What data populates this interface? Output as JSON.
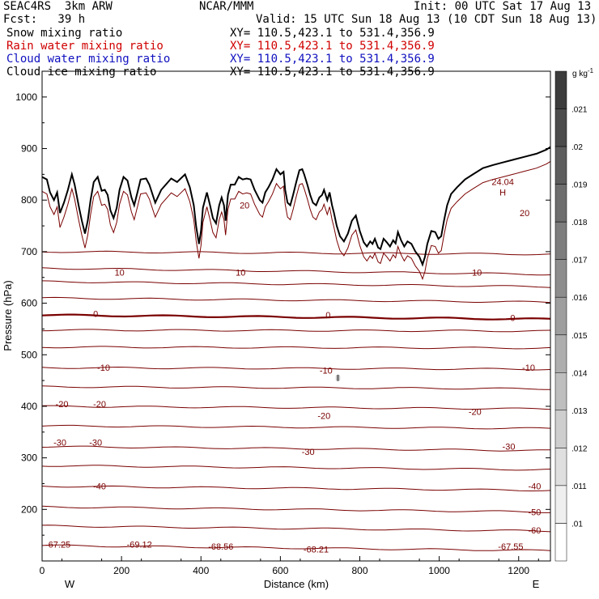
{
  "header": {
    "left1": "SEAC4RS  3km ARW",
    "left2": "Fcst:   39 h",
    "center1": "NCAR/MMM",
    "valid": "Valid: 15 UTC Sun 18 Aug 13 (10 CDT Sun 18 Aug 13)",
    "init": "Init: 00 UTC Sat 17 Aug 13"
  },
  "fields": [
    {
      "name": "Snow mixing ratio",
      "xy": "XY= 110.5,423.1 to 531.4,356.9",
      "color": "#000000"
    },
    {
      "name": "Rain water mixing ratio",
      "xy": "XY= 110.5,423.1 to 531.4,356.9",
      "color": "#d00000"
    },
    {
      "name": "Cloud water mixing ratio",
      "xy": "XY= 110.5,423.1 to 531.4,356.9",
      "color": "#1010c0"
    },
    {
      "name": "Cloud ice mixing ratio",
      "xy": "XY= 110.5,423.1 to 531.4,356.9",
      "color": "#000000"
    }
  ],
  "chart_data": {
    "type": "cross-section",
    "xlabel": "Distance (km)",
    "ylabel": "Pressure (hPa)",
    "xlim": [
      0,
      1280
    ],
    "ylim": [
      1050,
      100
    ],
    "xticks": [
      0,
      200,
      400,
      600,
      800,
      1000,
      1200
    ],
    "yticks": [
      200,
      300,
      400,
      500,
      600,
      700,
      800,
      900,
      1000
    ],
    "end_labels": {
      "left": "W",
      "right": "E"
    },
    "colorbar": {
      "units": "g kg",
      "unit_sup": "-1",
      "ticks": [
        ".021",
        ".02",
        ".019",
        ".018",
        ".017",
        ".016",
        ".015",
        ".014",
        ".013",
        ".012",
        ".011",
        ".01"
      ]
    },
    "contour_labels": [
      {
        "x": 40,
        "p": 132,
        "text": "-67.25"
      },
      {
        "x": 245,
        "p": 132,
        "text": "-69.12"
      },
      {
        "x": 450,
        "p": 128,
        "text": "-68.56"
      },
      {
        "x": 690,
        "p": 123,
        "text": "-68.21"
      },
      {
        "x": 1180,
        "p": 128,
        "text": "-67.55"
      },
      {
        "x": 1240,
        "p": 160,
        "text": "-60"
      },
      {
        "x": 1240,
        "p": 195,
        "text": "-50"
      },
      {
        "x": 1240,
        "p": 245,
        "text": "-40"
      },
      {
        "x": 145,
        "p": 245,
        "text": "-40"
      },
      {
        "x": 45,
        "p": 330,
        "text": "-30"
      },
      {
        "x": 135,
        "p": 330,
        "text": "-30"
      },
      {
        "x": 670,
        "p": 312,
        "text": "-30"
      },
      {
        "x": 1175,
        "p": 322,
        "text": "-30"
      },
      {
        "x": 50,
        "p": 405,
        "text": "-20"
      },
      {
        "x": 145,
        "p": 405,
        "text": "-20"
      },
      {
        "x": 710,
        "p": 382,
        "text": "-20"
      },
      {
        "x": 1090,
        "p": 390,
        "text": "-20"
      },
      {
        "x": 155,
        "p": 475,
        "text": "-10"
      },
      {
        "x": 715,
        "p": 470,
        "text": "-10"
      },
      {
        "x": 1225,
        "p": 475,
        "text": "-10"
      },
      {
        "x": 135,
        "p": 580,
        "text": "0"
      },
      {
        "x": 720,
        "p": 577,
        "text": "0"
      },
      {
        "x": 1185,
        "p": 572,
        "text": "0"
      },
      {
        "x": 195,
        "p": 660,
        "text": "10"
      },
      {
        "x": 500,
        "p": 660,
        "text": "10"
      },
      {
        "x": 1095,
        "p": 660,
        "text": "10"
      },
      {
        "x": 510,
        "p": 790,
        "text": "20"
      },
      {
        "x": 1215,
        "p": 775,
        "text": "20"
      },
      {
        "x": 1160,
        "p": 815,
        "text": "H"
      },
      {
        "x": 1160,
        "p": 836,
        "text": "24.04"
      }
    ],
    "isotherms": [
      {
        "base": 130,
        "slope": -10,
        "label": ""
      },
      {
        "base": 168,
        "slope": -10,
        "label": ""
      },
      {
        "base": 205,
        "slope": -10,
        "label": ""
      },
      {
        "base": 245,
        "slope": -8,
        "label": ""
      },
      {
        "base": 285,
        "slope": -8,
        "label": ""
      },
      {
        "base": 322,
        "slope": -8,
        "label": ""
      },
      {
        "base": 362,
        "slope": -5,
        "label": ""
      },
      {
        "base": 400,
        "slope": -5,
        "label": ""
      },
      {
        "base": 438,
        "slope": -4,
        "label": ""
      },
      {
        "base": 475,
        "slope": -3,
        "label": ""
      },
      {
        "base": 515,
        "slope": -2,
        "label": ""
      },
      {
        "base": 548,
        "slope": -2,
        "label": ""
      },
      {
        "base": 577,
        "slope": -8,
        "label": "",
        "bold": true
      },
      {
        "base": 610,
        "slope": -8,
        "label": ""
      },
      {
        "base": 642,
        "slope": -10,
        "label": ""
      },
      {
        "base": 668,
        "slope": -12,
        "label": ""
      },
      {
        "base": 700,
        "slope": -5,
        "label": ""
      }
    ],
    "terrain": [
      [
        0,
        845
      ],
      [
        12,
        840
      ],
      [
        20,
        815
      ],
      [
        30,
        800
      ],
      [
        38,
        815
      ],
      [
        45,
        775
      ],
      [
        55,
        795
      ],
      [
        65,
        820
      ],
      [
        75,
        850
      ],
      [
        82,
        830
      ],
      [
        92,
        790
      ],
      [
        100,
        760
      ],
      [
        108,
        735
      ],
      [
        115,
        760
      ],
      [
        122,
        800
      ],
      [
        130,
        835
      ],
      [
        140,
        845
      ],
      [
        150,
        818
      ],
      [
        158,
        820
      ],
      [
        165,
        810
      ],
      [
        172,
        780
      ],
      [
        180,
        765
      ],
      [
        188,
        785
      ],
      [
        195,
        820
      ],
      [
        205,
        845
      ],
      [
        215,
        838
      ],
      [
        225,
        805
      ],
      [
        232,
        790
      ],
      [
        240,
        815
      ],
      [
        248,
        840
      ],
      [
        262,
        842
      ],
      [
        270,
        830
      ],
      [
        285,
        795
      ],
      [
        300,
        820
      ],
      [
        325,
        842
      ],
      [
        340,
        835
      ],
      [
        360,
        850
      ],
      [
        372,
        825
      ],
      [
        382,
        790
      ],
      [
        388,
        748
      ],
      [
        395,
        715
      ],
      [
        400,
        740
      ],
      [
        405,
        785
      ],
      [
        415,
        815
      ],
      [
        423,
        790
      ],
      [
        430,
        765
      ],
      [
        438,
        755
      ],
      [
        446,
        790
      ],
      [
        452,
        805
      ],
      [
        458,
        790
      ],
      [
        462,
        760
      ],
      [
        468,
        810
      ],
      [
        475,
        830
      ],
      [
        485,
        830
      ],
      [
        495,
        845
      ],
      [
        505,
        840
      ],
      [
        515,
        842
      ],
      [
        525,
        840
      ],
      [
        535,
        820
      ],
      [
        548,
        800
      ],
      [
        555,
        795
      ],
      [
        562,
        815
      ],
      [
        570,
        825
      ],
      [
        580,
        840
      ],
      [
        590,
        860
      ],
      [
        600,
        850
      ],
      [
        608,
        855
      ],
      [
        612,
        820
      ],
      [
        618,
        795
      ],
      [
        625,
        790
      ],
      [
        632,
        810
      ],
      [
        640,
        835
      ],
      [
        648,
        858
      ],
      [
        655,
        860
      ],
      [
        660,
        850
      ],
      [
        668,
        830
      ],
      [
        675,
        810
      ],
      [
        682,
        795
      ],
      [
        690,
        790
      ],
      [
        698,
        805
      ],
      [
        705,
        810
      ],
      [
        710,
        820
      ],
      [
        718,
        800
      ],
      [
        724,
        815
      ],
      [
        730,
        790
      ],
      [
        735,
        775
      ],
      [
        742,
        750
      ],
      [
        750,
        730
      ],
      [
        760,
        720
      ],
      [
        770,
        735
      ],
      [
        780,
        760
      ],
      [
        790,
        770
      ],
      [
        800,
        740
      ],
      [
        810,
        718
      ],
      [
        818,
        710
      ],
      [
        826,
        720
      ],
      [
        832,
        715
      ],
      [
        838,
        725
      ],
      [
        846,
        708
      ],
      [
        852,
        705
      ],
      [
        860,
        725
      ],
      [
        868,
        718
      ],
      [
        876,
        710
      ],
      [
        884,
        722
      ],
      [
        890,
        716
      ],
      [
        896,
        738
      ],
      [
        904,
        722
      ],
      [
        912,
        710
      ],
      [
        920,
        720
      ],
      [
        930,
        715
      ],
      [
        940,
        700
      ],
      [
        950,
        690
      ],
      [
        958,
        675
      ],
      [
        964,
        690
      ],
      [
        970,
        715
      ],
      [
        980,
        740
      ],
      [
        990,
        738
      ],
      [
        998,
        725
      ],
      [
        1005,
        730
      ],
      [
        1012,
        760
      ],
      [
        1020,
        790
      ],
      [
        1030,
        812
      ],
      [
        1045,
        825
      ],
      [
        1065,
        840
      ],
      [
        1085,
        850
      ],
      [
        1110,
        862
      ],
      [
        1135,
        868
      ],
      [
        1160,
        873
      ],
      [
        1185,
        878
      ],
      [
        1215,
        884
      ],
      [
        1245,
        890
      ],
      [
        1270,
        898
      ],
      [
        1280,
        903
      ]
    ],
    "rain_cloud": {
      "x": 745,
      "p_top": 420,
      "p_bottom": 490
    }
  }
}
